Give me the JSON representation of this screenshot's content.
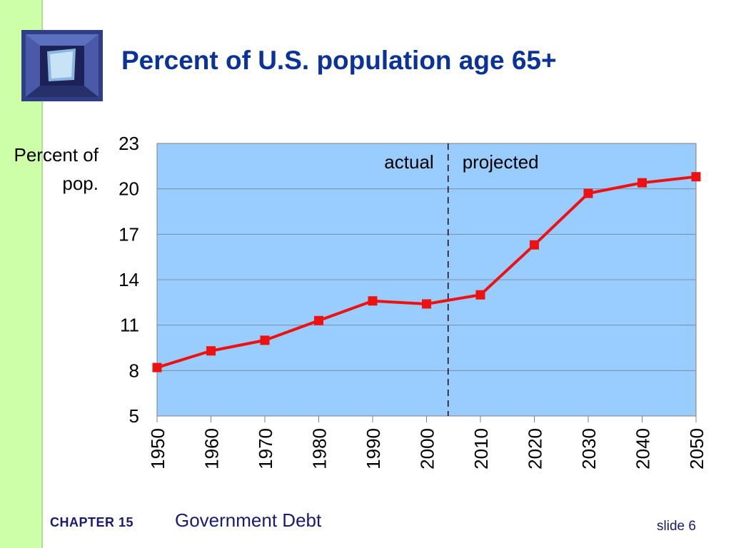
{
  "slide": {
    "title": "Percent of U.S. population age 65+",
    "chapter": "CHAPTER 15",
    "chapter_title": "Government Debt",
    "slide_number": "slide 6"
  },
  "colors": {
    "left_bar": "#ccffa8",
    "title": "#0a3299",
    "plot_background": "#99ccff",
    "series_line": "#ee1111",
    "divider": "#000000"
  },
  "icons": {
    "logo": "window-logo"
  },
  "chart_data": {
    "type": "line",
    "title": "Percent of U.S. population age 65+",
    "ylabel": "Percent of pop.",
    "xlabel": "",
    "x": [
      1950,
      1960,
      1970,
      1980,
      1990,
      2000,
      2010,
      2020,
      2030,
      2040,
      2050
    ],
    "y_ticks": [
      5,
      8,
      11,
      14,
      17,
      20,
      23
    ],
    "x_ticks": [
      "1950",
      "1960",
      "1970",
      "1980",
      "1990",
      "2000",
      "2010",
      "2020",
      "2030",
      "2040",
      "2050"
    ],
    "ylim": [
      5,
      23
    ],
    "xlim": [
      1950,
      2050
    ],
    "grid": true,
    "series": [
      {
        "values": [
          8.2,
          9.3,
          10.0,
          11.3,
          12.6,
          12.4,
          13.0,
          16.3,
          19.7,
          20.4,
          20.8
        ]
      }
    ],
    "annotations": {
      "left": "actual",
      "right": "projected"
    },
    "divider_x": 2004
  }
}
